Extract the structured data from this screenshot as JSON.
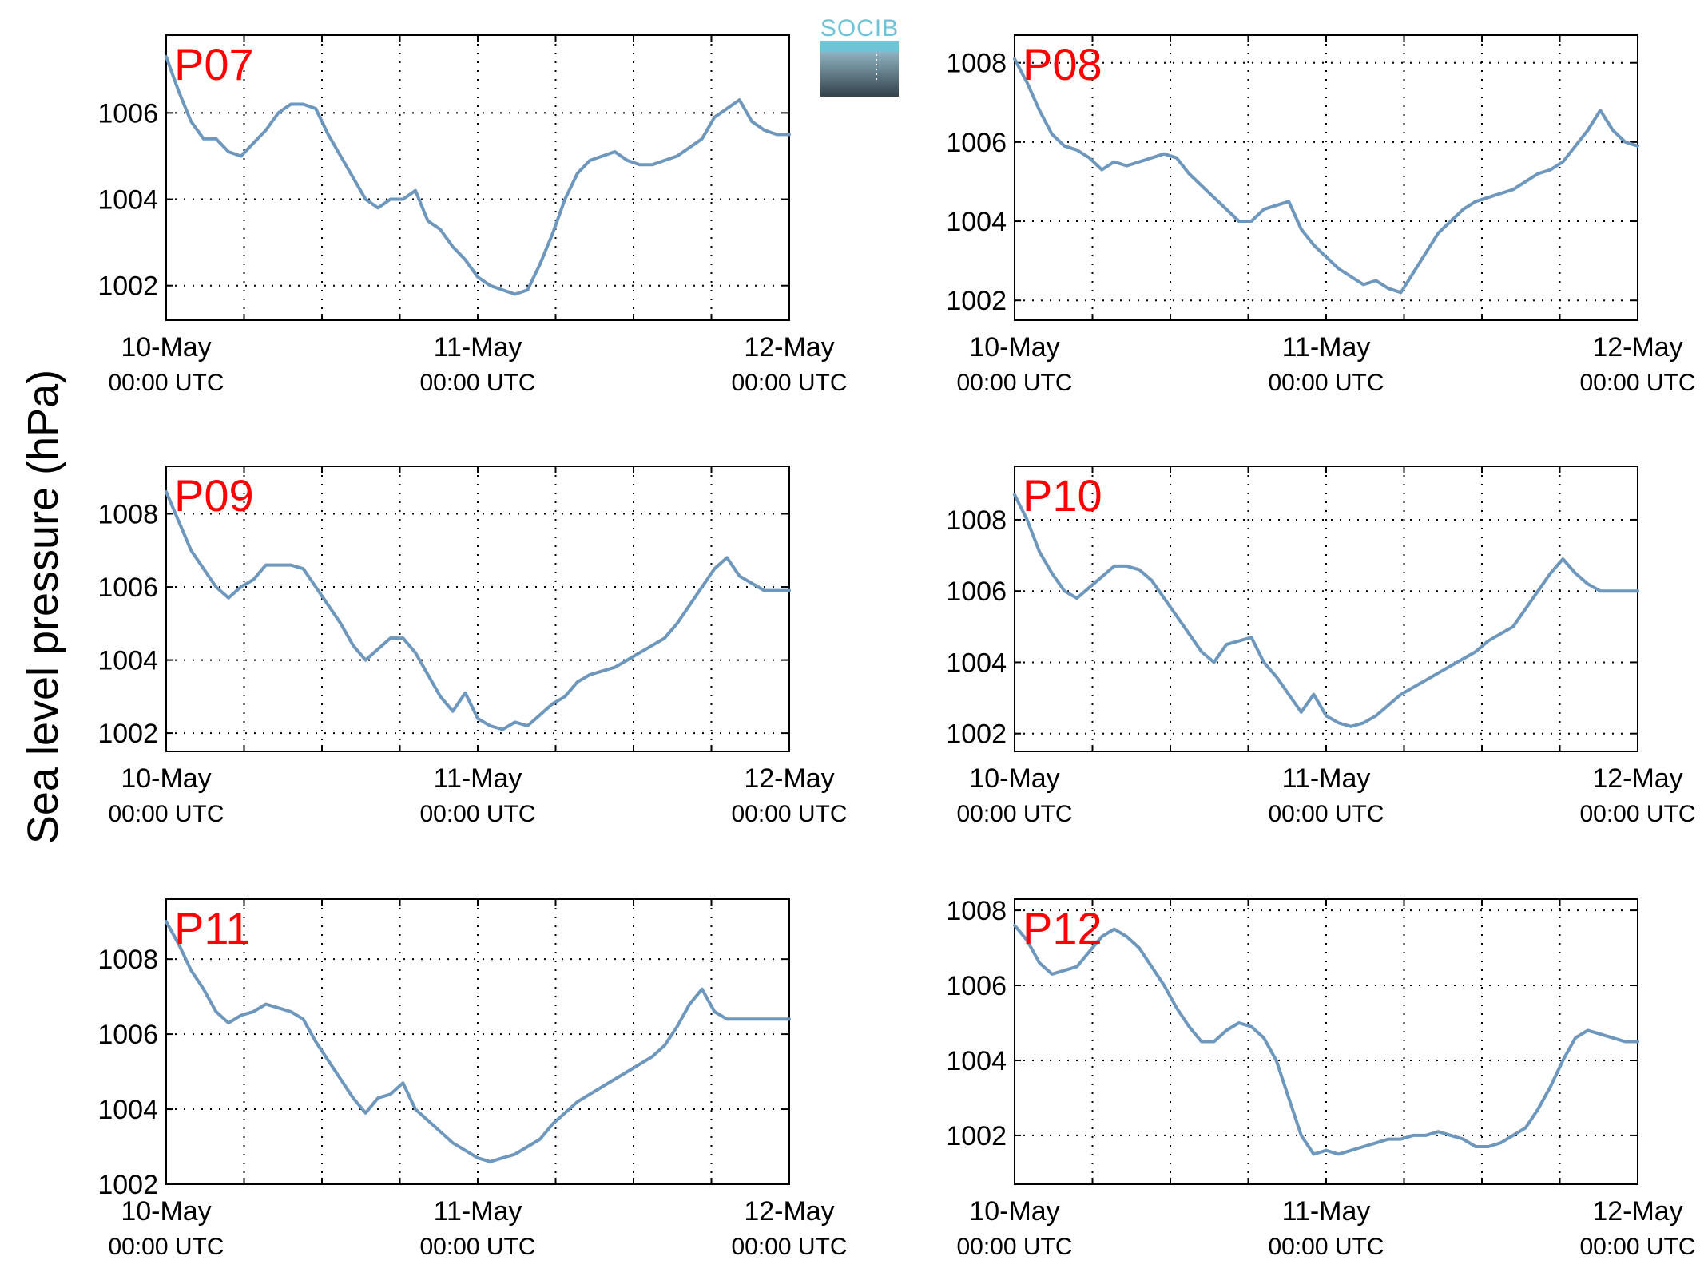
{
  "figure": {
    "ylabel": "Sea level pressure (hPa)",
    "logo_text": "SOCIB",
    "colors": {
      "line": "#6e97bd",
      "panel_label": "#ff0000",
      "grid": "#000000",
      "logo_top": "#6ec3d6",
      "logo_bottom": "#33424b"
    }
  },
  "chart_data": [
    {
      "type": "line",
      "panel": "P07",
      "ylim": [
        1001.2,
        1007.8
      ],
      "yticks": [
        1002,
        1004,
        1006
      ],
      "x_range_days": [
        0,
        2
      ],
      "grid": true,
      "xticks": [
        {
          "label": "10-May",
          "sub": "00:00 UTC"
        },
        {
          "label": "11-May",
          "sub": "00:00 UTC"
        },
        {
          "label": "12-May",
          "sub": "00:00 UTC"
        }
      ],
      "series": [
        {
          "x": [
            0,
            0.04,
            0.08,
            0.12,
            0.16,
            0.2,
            0.24,
            0.28,
            0.32,
            0.36,
            0.4,
            0.44,
            0.48,
            0.52,
            0.56,
            0.6,
            0.64,
            0.68,
            0.72,
            0.76,
            0.8,
            0.84,
            0.88,
            0.92,
            0.96,
            1,
            1.04,
            1.08,
            1.12,
            1.16,
            1.2,
            1.24,
            1.28,
            1.32,
            1.36,
            1.4,
            1.44,
            1.48,
            1.52,
            1.56,
            1.6,
            1.64,
            1.68,
            1.72,
            1.76,
            1.8,
            1.84,
            1.88,
            1.92,
            1.96,
            2
          ],
          "values": [
            1007.3,
            1006.5,
            1005.8,
            1005.4,
            1005.4,
            1005.1,
            1005.0,
            1005.3,
            1005.6,
            1006.0,
            1006.2,
            1006.2,
            1006.1,
            1005.5,
            1005.0,
            1004.5,
            1004.0,
            1003.8,
            1004.0,
            1004.0,
            1004.2,
            1003.5,
            1003.3,
            1002.9,
            1002.6,
            1002.2,
            1002.0,
            1001.9,
            1001.8,
            1001.9,
            1002.5,
            1003.2,
            1004.0,
            1004.6,
            1004.9,
            1005.0,
            1005.1,
            1004.9,
            1004.8,
            1004.8,
            1004.9,
            1005.0,
            1005.2,
            1005.4,
            1005.9,
            1006.1,
            1006.3,
            1005.8,
            1005.6,
            1005.5,
            1005.5
          ]
        }
      ]
    },
    {
      "type": "line",
      "panel": "P08",
      "ylim": [
        1001.5,
        1008.7
      ],
      "yticks": [
        1002,
        1004,
        1006,
        1008
      ],
      "x_range_days": [
        0,
        2
      ],
      "grid": true,
      "xticks": [
        {
          "label": "10-May",
          "sub": "00:00 UTC"
        },
        {
          "label": "11-May",
          "sub": "00:00 UTC"
        },
        {
          "label": "12-May",
          "sub": "00:00 UTC"
        }
      ],
      "series": [
        {
          "x": [
            0,
            0.04,
            0.08,
            0.12,
            0.16,
            0.2,
            0.24,
            0.28,
            0.32,
            0.36,
            0.4,
            0.44,
            0.48,
            0.52,
            0.56,
            0.6,
            0.64,
            0.68,
            0.72,
            0.76,
            0.8,
            0.84,
            0.88,
            0.92,
            0.96,
            1,
            1.04,
            1.08,
            1.12,
            1.16,
            1.2,
            1.24,
            1.28,
            1.32,
            1.36,
            1.4,
            1.44,
            1.48,
            1.52,
            1.56,
            1.6,
            1.64,
            1.68,
            1.72,
            1.76,
            1.8,
            1.84,
            1.88,
            1.92,
            1.96,
            2
          ],
          "values": [
            1008.1,
            1007.5,
            1006.8,
            1006.2,
            1005.9,
            1005.8,
            1005.6,
            1005.3,
            1005.5,
            1005.4,
            1005.5,
            1005.6,
            1005.7,
            1005.6,
            1005.2,
            1004.9,
            1004.6,
            1004.3,
            1004.0,
            1004.0,
            1004.3,
            1004.4,
            1004.5,
            1003.8,
            1003.4,
            1003.1,
            1002.8,
            1002.6,
            1002.4,
            1002.5,
            1002.3,
            1002.2,
            1002.7,
            1003.2,
            1003.7,
            1004.0,
            1004.3,
            1004.5,
            1004.6,
            1004.7,
            1004.8,
            1005.0,
            1005.2,
            1005.3,
            1005.5,
            1005.9,
            1006.3,
            1006.8,
            1006.3,
            1006.0,
            1005.9
          ]
        }
      ]
    },
    {
      "type": "line",
      "panel": "P09",
      "ylim": [
        1001.5,
        1009.3
      ],
      "yticks": [
        1002,
        1004,
        1006,
        1008
      ],
      "x_range_days": [
        0,
        2
      ],
      "grid": true,
      "xticks": [
        {
          "label": "10-May",
          "sub": "00:00 UTC"
        },
        {
          "label": "11-May",
          "sub": "00:00 UTC"
        },
        {
          "label": "12-May",
          "sub": "00:00 UTC"
        }
      ],
      "series": [
        {
          "x": [
            0,
            0.04,
            0.08,
            0.12,
            0.16,
            0.2,
            0.24,
            0.28,
            0.32,
            0.36,
            0.4,
            0.44,
            0.48,
            0.52,
            0.56,
            0.6,
            0.64,
            0.68,
            0.72,
            0.76,
            0.8,
            0.84,
            0.88,
            0.92,
            0.96,
            1,
            1.04,
            1.08,
            1.12,
            1.16,
            1.2,
            1.24,
            1.28,
            1.32,
            1.36,
            1.4,
            1.44,
            1.48,
            1.52,
            1.56,
            1.6,
            1.64,
            1.68,
            1.72,
            1.76,
            1.8,
            1.84,
            1.88,
            1.92,
            1.96,
            2
          ],
          "values": [
            1008.6,
            1007.8,
            1007.0,
            1006.5,
            1006.0,
            1005.7,
            1006.0,
            1006.2,
            1006.6,
            1006.6,
            1006.6,
            1006.5,
            1006.0,
            1005.5,
            1005.0,
            1004.4,
            1004.0,
            1004.3,
            1004.6,
            1004.6,
            1004.2,
            1003.6,
            1003.0,
            1002.6,
            1003.1,
            1002.4,
            1002.2,
            1002.1,
            1002.3,
            1002.2,
            1002.5,
            1002.8,
            1003.0,
            1003.4,
            1003.6,
            1003.7,
            1003.8,
            1004.0,
            1004.2,
            1004.4,
            1004.6,
            1005.0,
            1005.5,
            1006.0,
            1006.5,
            1006.8,
            1006.3,
            1006.1,
            1005.9,
            1005.9,
            1005.9
          ]
        }
      ]
    },
    {
      "type": "line",
      "panel": "P10",
      "ylim": [
        1001.5,
        1009.5
      ],
      "yticks": [
        1002,
        1004,
        1006,
        1008
      ],
      "x_range_days": [
        0,
        2
      ],
      "grid": true,
      "xticks": [
        {
          "label": "10-May",
          "sub": "00:00 UTC"
        },
        {
          "label": "11-May",
          "sub": "00:00 UTC"
        },
        {
          "label": "12-May",
          "sub": "00:00 UTC"
        }
      ],
      "series": [
        {
          "x": [
            0,
            0.04,
            0.08,
            0.12,
            0.16,
            0.2,
            0.24,
            0.28,
            0.32,
            0.36,
            0.4,
            0.44,
            0.48,
            0.52,
            0.56,
            0.6,
            0.64,
            0.68,
            0.72,
            0.76,
            0.8,
            0.84,
            0.88,
            0.92,
            0.96,
            1,
            1.04,
            1.08,
            1.12,
            1.16,
            1.2,
            1.24,
            1.28,
            1.32,
            1.36,
            1.4,
            1.44,
            1.48,
            1.52,
            1.56,
            1.6,
            1.64,
            1.68,
            1.72,
            1.76,
            1.8,
            1.84,
            1.88,
            1.92,
            1.96,
            2
          ],
          "values": [
            1008.7,
            1008.0,
            1007.1,
            1006.5,
            1006.0,
            1005.8,
            1006.1,
            1006.4,
            1006.7,
            1006.7,
            1006.6,
            1006.3,
            1005.8,
            1005.3,
            1004.8,
            1004.3,
            1004.0,
            1004.5,
            1004.6,
            1004.7,
            1004.0,
            1003.6,
            1003.1,
            1002.6,
            1003.1,
            1002.5,
            1002.3,
            1002.2,
            1002.3,
            1002.5,
            1002.8,
            1003.1,
            1003.3,
            1003.5,
            1003.7,
            1003.9,
            1004.1,
            1004.3,
            1004.6,
            1004.8,
            1005.0,
            1005.5,
            1006.0,
            1006.5,
            1006.9,
            1006.5,
            1006.2,
            1006.0,
            1006.0,
            1006.0,
            1006.0
          ]
        }
      ]
    },
    {
      "type": "line",
      "panel": "P11",
      "ylim": [
        1002,
        1009.6
      ],
      "yticks": [
        1002,
        1004,
        1006,
        1008
      ],
      "x_range_days": [
        0,
        2
      ],
      "grid": true,
      "xticks": [
        {
          "label": "10-May",
          "sub": "00:00 UTC"
        },
        {
          "label": "11-May",
          "sub": "00:00 UTC"
        },
        {
          "label": "12-May",
          "sub": "00:00 UTC"
        }
      ],
      "series": [
        {
          "x": [
            0,
            0.04,
            0.08,
            0.12,
            0.16,
            0.2,
            0.24,
            0.28,
            0.32,
            0.36,
            0.4,
            0.44,
            0.48,
            0.52,
            0.56,
            0.6,
            0.64,
            0.68,
            0.72,
            0.76,
            0.8,
            0.84,
            0.88,
            0.92,
            0.96,
            1,
            1.04,
            1.08,
            1.12,
            1.16,
            1.2,
            1.24,
            1.28,
            1.32,
            1.36,
            1.4,
            1.44,
            1.48,
            1.52,
            1.56,
            1.6,
            1.64,
            1.68,
            1.72,
            1.76,
            1.8,
            1.84,
            1.88,
            1.92,
            1.96,
            2
          ],
          "values": [
            1009.0,
            1008.4,
            1007.7,
            1007.2,
            1006.6,
            1006.3,
            1006.5,
            1006.6,
            1006.8,
            1006.7,
            1006.6,
            1006.4,
            1005.8,
            1005.3,
            1004.8,
            1004.3,
            1003.9,
            1004.3,
            1004.4,
            1004.7,
            1004.0,
            1003.7,
            1003.4,
            1003.1,
            1002.9,
            1002.7,
            1002.6,
            1002.7,
            1002.8,
            1003.0,
            1003.2,
            1003.6,
            1003.9,
            1004.2,
            1004.4,
            1004.6,
            1004.8,
            1005.0,
            1005.2,
            1005.4,
            1005.7,
            1006.2,
            1006.8,
            1007.2,
            1006.6,
            1006.4,
            1006.4,
            1006.4,
            1006.4,
            1006.4,
            1006.4
          ]
        }
      ]
    },
    {
      "type": "line",
      "panel": "P12",
      "ylim": [
        1000.7,
        1008.3
      ],
      "yticks": [
        1002,
        1004,
        1006,
        1008
      ],
      "x_range_days": [
        0,
        2
      ],
      "grid": true,
      "xticks": [
        {
          "label": "10-May",
          "sub": "00:00 UTC"
        },
        {
          "label": "11-May",
          "sub": "00:00 UTC"
        },
        {
          "label": "12-May",
          "sub": "00:00 UTC"
        }
      ],
      "series": [
        {
          "x": [
            0,
            0.04,
            0.08,
            0.12,
            0.16,
            0.2,
            0.24,
            0.28,
            0.32,
            0.36,
            0.4,
            0.44,
            0.48,
            0.52,
            0.56,
            0.6,
            0.64,
            0.68,
            0.72,
            0.76,
            0.8,
            0.84,
            0.88,
            0.92,
            0.96,
            1,
            1.04,
            1.08,
            1.12,
            1.16,
            1.2,
            1.24,
            1.28,
            1.32,
            1.36,
            1.4,
            1.44,
            1.48,
            1.52,
            1.56,
            1.6,
            1.64,
            1.68,
            1.72,
            1.76,
            1.8,
            1.84,
            1.88,
            1.92,
            1.96,
            2
          ],
          "values": [
            1007.6,
            1007.2,
            1006.6,
            1006.3,
            1006.4,
            1006.5,
            1006.9,
            1007.3,
            1007.5,
            1007.3,
            1007.0,
            1006.5,
            1006.0,
            1005.4,
            1004.9,
            1004.5,
            1004.5,
            1004.8,
            1005.0,
            1004.9,
            1004.6,
            1004.0,
            1003.0,
            1002.0,
            1001.5,
            1001.6,
            1001.5,
            1001.6,
            1001.7,
            1001.8,
            1001.9,
            1001.9,
            1002.0,
            1002.0,
            1002.1,
            1002.0,
            1001.9,
            1001.7,
            1001.7,
            1001.8,
            1002.0,
            1002.2,
            1002.7,
            1003.3,
            1004.0,
            1004.6,
            1004.8,
            1004.7,
            1004.6,
            1004.5,
            1004.5
          ]
        }
      ]
    }
  ]
}
